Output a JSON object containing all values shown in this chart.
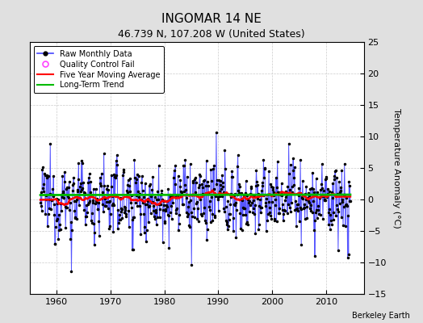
{
  "title": "INGOMAR 14 NE",
  "subtitle": "46.739 N, 107.208 W (United States)",
  "ylabel": "Temperature Anomaly (°C)",
  "credit": "Berkeley Earth",
  "xlim": [
    1955,
    2017
  ],
  "ylim": [
    -15,
    25
  ],
  "yticks": [
    -15,
    -10,
    -5,
    0,
    5,
    10,
    15,
    20,
    25
  ],
  "xticks": [
    1960,
    1970,
    1980,
    1990,
    2000,
    2010
  ],
  "start_year": 1957.0,
  "end_year": 2014.5,
  "raw_color": "#4444FF",
  "moving_avg_color": "#FF0000",
  "trend_color": "#00BB00",
  "qc_fail_color": "#FF44FF",
  "background_color": "#E0E0E0",
  "plot_bg_color": "#FFFFFF",
  "grid_color": "#CCCCCC",
  "seed": 12345,
  "title_fontsize": 11,
  "subtitle_fontsize": 9,
  "tick_fontsize": 8,
  "ylabel_fontsize": 8,
  "legend_fontsize": 7,
  "credit_fontsize": 7
}
